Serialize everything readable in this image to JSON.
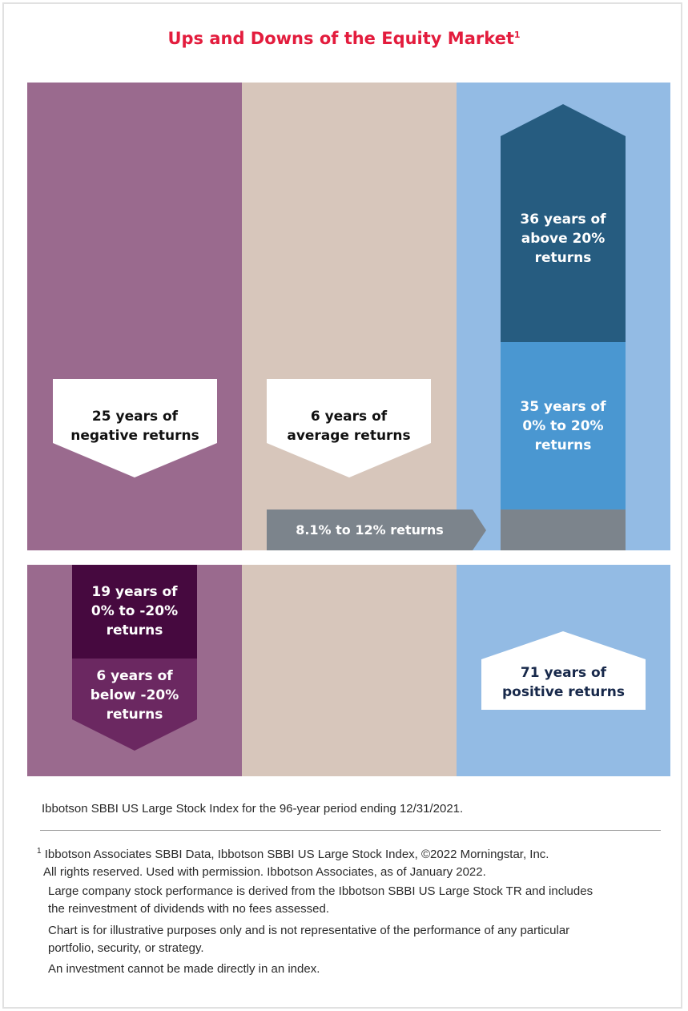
{
  "title": {
    "text": "Ups and Downs of the Equity Market",
    "footnote_mark": "1"
  },
  "colors": {
    "title": "#e31c3d",
    "negative_band": "#9a6a8e",
    "average_band": "#d7c6bb",
    "positive_band": "#93bbe4",
    "above_20": "#265c80",
    "zero_to_20": "#4a97d1",
    "average_bar": "#7c848c",
    "zero_to_neg20": "#46093f",
    "below_neg20": "#6b2861"
  },
  "diagram": {
    "negative": {
      "line1": "25 years of",
      "line2": "negative returns"
    },
    "average": {
      "line1": "6 years of",
      "line2": "average returns"
    },
    "average_range": "8.1% to 12% returns",
    "above_20": {
      "line1": "36 years of",
      "line2": "above 20%",
      "line3": "returns"
    },
    "zero_to_20": {
      "line1": "35 years of",
      "line2": "0% to 20%",
      "line3": "returns"
    },
    "zero_to_neg20": {
      "line1": "19 years of",
      "line2": "0% to -20%",
      "line3": "returns"
    },
    "below_neg20": {
      "line1": "6 years of",
      "line2": "below -20%",
      "line3": "returns"
    },
    "positive": {
      "line1": "71 years of",
      "line2": "positive returns"
    }
  },
  "footnotes": {
    "source": "Ibbotson SBBI US Large Stock Index for the 96-year period ending 12/31/2021.",
    "note1_mark": "1",
    "note1_line1": "Ibbotson Associates SBBI Data, Ibbotson SBBI US Large Stock Index, ©2022 Morningstar, Inc.",
    "note1_line2": "All rights reserved. Used with permission. Ibbotson Associates, as of January 2022.",
    "note2_line1": "Large company stock performance is derived from the Ibbotson SBBI US Large Stock TR and includes",
    "note2_line2": "the reinvestment of dividends with no fees assessed.",
    "note3_line1": "Chart is for illustrative purposes only and is not representative of the performance of any particular",
    "note3_line2": "portfolio, security, or strategy.",
    "note4": "An investment cannot be made directly in an index."
  }
}
